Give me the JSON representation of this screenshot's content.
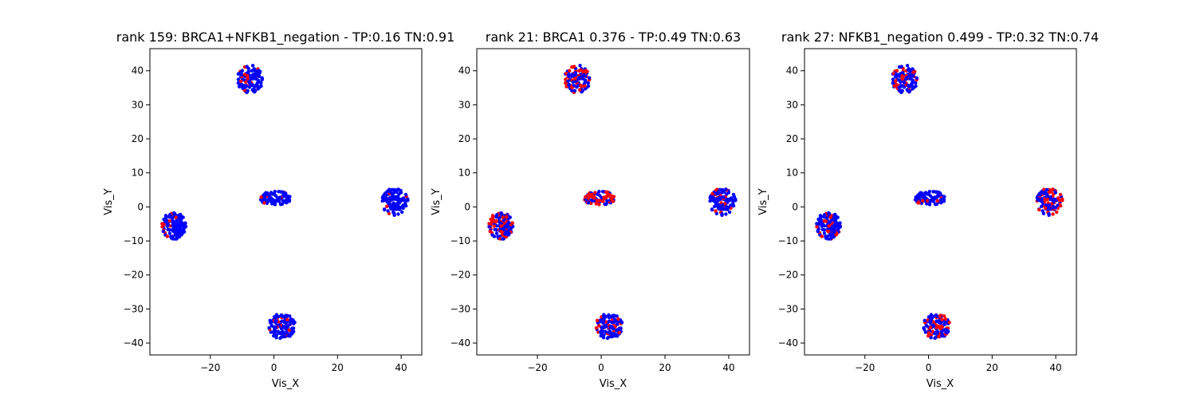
{
  "figure": {
    "background": "#ffffff"
  },
  "colors": {
    "positive": "#ff0000",
    "negative": "#0000ff",
    "axis": "#000000"
  },
  "chart_data": [
    {
      "type": "scatter",
      "title": "rank 159: BRCA1+NFKB1_negation - TP:0.16 TN:0.91",
      "xlabel": "Vis_X",
      "ylabel": "Vis_Y",
      "xlim": [
        -39,
        46.5
      ],
      "ylim": [
        -43.5,
        46.5
      ],
      "xticks": [
        -20,
        0,
        20,
        40
      ],
      "yticks": [
        -40,
        -30,
        -20,
        -10,
        0,
        10,
        20,
        30,
        40
      ],
      "grid": false,
      "red_fraction": [
        0.16,
        0.14,
        0.12,
        0.05,
        0.12
      ],
      "clusters": [
        {
          "cx": -7.5,
          "cy": 37.5,
          "rx": 4.0,
          "ry": 4.2,
          "n": 120
        },
        {
          "cx": -31.5,
          "cy": -5.5,
          "rx": 3.8,
          "ry": 4.0,
          "n": 140
        },
        {
          "cx": 0.5,
          "cy": 2.5,
          "rx": 4.8,
          "ry": 2.2,
          "n": 90
        },
        {
          "cx": 38.0,
          "cy": 1.5,
          "rx": 4.2,
          "ry": 4.0,
          "n": 130
        },
        {
          "cx": 2.5,
          "cy": -35.0,
          "rx": 4.2,
          "ry": 3.8,
          "n": 130
        }
      ]
    },
    {
      "type": "scatter",
      "title": "rank 21: BRCA1 0.376 - TP:0.49 TN:0.63",
      "xlabel": "Vis_X",
      "ylabel": "Vis_Y",
      "xlim": [
        -39,
        46.5
      ],
      "ylim": [
        -43.5,
        46.5
      ],
      "xticks": [
        -20,
        0,
        20,
        40
      ],
      "yticks": [
        -40,
        -30,
        -20,
        -10,
        0,
        10,
        20,
        30,
        40
      ],
      "grid": false,
      "red_fraction": [
        0.45,
        0.4,
        0.65,
        0.15,
        0.3
      ],
      "clusters": [
        {
          "cx": -7.5,
          "cy": 37.5,
          "rx": 4.0,
          "ry": 4.2,
          "n": 120
        },
        {
          "cx": -31.5,
          "cy": -5.5,
          "rx": 3.8,
          "ry": 4.0,
          "n": 140
        },
        {
          "cx": -0.5,
          "cy": 2.5,
          "rx": 4.8,
          "ry": 2.2,
          "n": 90
        },
        {
          "cx": 38.0,
          "cy": 1.5,
          "rx": 4.2,
          "ry": 4.0,
          "n": 130
        },
        {
          "cx": 2.5,
          "cy": -35.0,
          "rx": 4.2,
          "ry": 3.8,
          "n": 130
        }
      ]
    },
    {
      "type": "scatter",
      "title": "rank 27: NFKB1_negation 0.499 - TP:0.32 TN:0.74",
      "xlabel": "Vis_X",
      "ylabel": "Vis_Y",
      "xlim": [
        -39,
        46.5
      ],
      "ylim": [
        -43.5,
        46.5
      ],
      "xticks": [
        -20,
        0,
        20,
        40
      ],
      "yticks": [
        -40,
        -30,
        -20,
        -10,
        0,
        10,
        20,
        30,
        40
      ],
      "grid": false,
      "red_fraction": [
        0.3,
        0.25,
        0.12,
        0.3,
        0.3
      ],
      "clusters": [
        {
          "cx": -7.5,
          "cy": 37.5,
          "rx": 4.0,
          "ry": 4.2,
          "n": 120
        },
        {
          "cx": -31.5,
          "cy": -5.5,
          "rx": 3.8,
          "ry": 4.0,
          "n": 140
        },
        {
          "cx": 0.5,
          "cy": 2.5,
          "rx": 4.8,
          "ry": 2.2,
          "n": 90
        },
        {
          "cx": 38.0,
          "cy": 1.5,
          "rx": 4.2,
          "ry": 4.0,
          "n": 130
        },
        {
          "cx": 2.5,
          "cy": -35.0,
          "rx": 4.2,
          "ry": 3.8,
          "n": 130
        }
      ]
    }
  ]
}
